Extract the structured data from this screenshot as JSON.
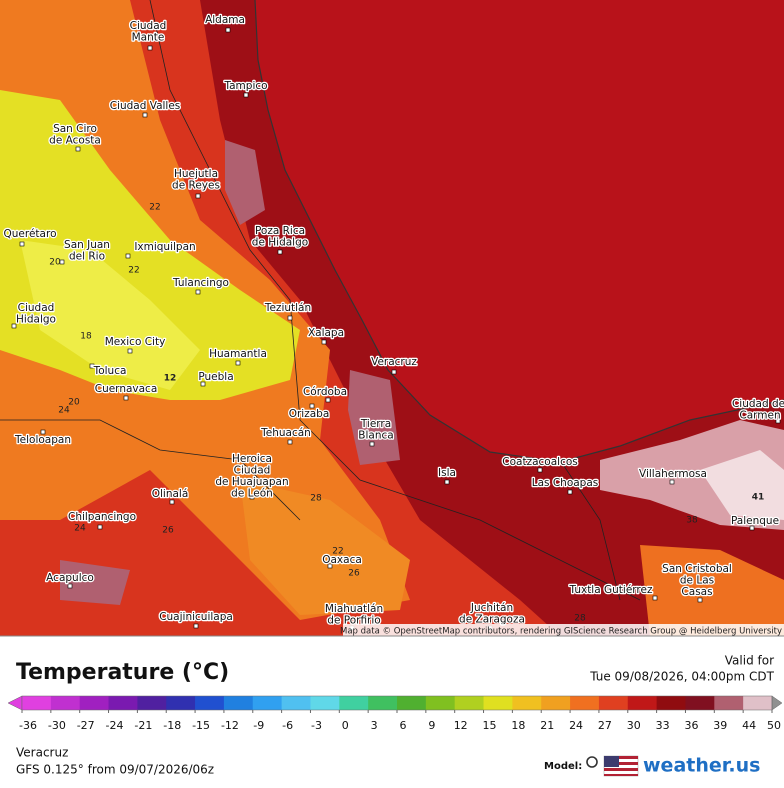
{
  "map": {
    "cities": [
      [
        "Aldama"
      ],
      [
        "Ciudad",
        "Mante"
      ],
      [
        "Tampico"
      ],
      [
        "Ciudad Valles"
      ],
      [
        "San Ciro",
        "de Acosta"
      ],
      [
        "Huejutla",
        "de Reyes"
      ],
      [
        "Poza Rica",
        "de Hidalgo"
      ],
      [
        "Ixmiquilpan"
      ],
      [
        "San Juan",
        "del Rio"
      ],
      [
        "Querétaro"
      ],
      [
        "Tulancingo"
      ],
      [
        "Teziutlán"
      ],
      [
        "Xalapa"
      ],
      [
        "Ciudad",
        "Hidalgo"
      ],
      [
        "Mexico City"
      ],
      [
        "Toluca"
      ],
      [
        "Cuernavaca"
      ],
      [
        "Huamantla"
      ],
      [
        "Puebla"
      ],
      [
        "Veracruz"
      ],
      [
        "Córdoba"
      ],
      [
        "Orizaba"
      ],
      [
        "Tierra",
        "Blanca"
      ],
      [
        "Tehuacán"
      ],
      [
        "Teloloapan"
      ],
      [
        "Heroica",
        "Ciudad",
        "de Huajuapan",
        "de León"
      ],
      [
        "Isla"
      ],
      [
        "Coatzacoalcos"
      ],
      [
        "Las Choapas"
      ],
      [
        "Villahermosa"
      ],
      [
        "Olinalá"
      ],
      [
        "Chilpancingo"
      ],
      [
        "Oaxaca"
      ],
      [
        "Acapulco"
      ],
      [
        "San Cristobal",
        "de Las",
        "Casas"
      ],
      [
        "Tuxtla Gutiérrez"
      ],
      [
        "Juchitán",
        "de Zaragoza"
      ],
      [
        "Miahuatlán",
        "de Porfirio"
      ],
      [
        "Cuajinicuilapa"
      ],
      [
        "Palenque"
      ],
      [
        "Ciudad del",
        "Carmen"
      ]
    ],
    "contour_labels": [
      "22",
      "22",
      "20",
      "18",
      "12",
      "24",
      "20",
      "28",
      "24",
      "22",
      "26",
      "26",
      "28",
      "38",
      "41"
    ]
  },
  "attribution": "Map data © OpenStreetMap contributors, rendering GIScience Research Group @ Heidelberg University",
  "legend": {
    "title": "Temperature (°C)",
    "ticks": [
      -36,
      -30,
      -27,
      -24,
      -21,
      -18,
      -15,
      -12,
      -9,
      -6,
      -3,
      0,
      3,
      6,
      9,
      12,
      15,
      18,
      21,
      24,
      27,
      30,
      33,
      36,
      39,
      44,
      50
    ],
    "colors": [
      "#e040e0",
      "#c030d0",
      "#a020c0",
      "#7a1ab0",
      "#5020a0",
      "#3030b0",
      "#2050d0",
      "#2080e0",
      "#30a0f0",
      "#50c0f0",
      "#60d8e8",
      "#40d0a0",
      "#40c060",
      "#50b030",
      "#80c020",
      "#b0d020",
      "#e0e020",
      "#f0c020",
      "#f0a020",
      "#f07020",
      "#e04020",
      "#c01818",
      "#900c10",
      "#801020",
      "#b06070",
      "#e0c0c8",
      "#909090"
    ]
  },
  "valid": {
    "label": "Valid for",
    "time": "Tue 09/08/2026, 04:00pm CDT"
  },
  "footer": {
    "location": "Veracruz",
    "model_run": "GFS 0.125° from 09/07/2026/06z",
    "model_label": "Model:",
    "brand": "weather.us"
  }
}
